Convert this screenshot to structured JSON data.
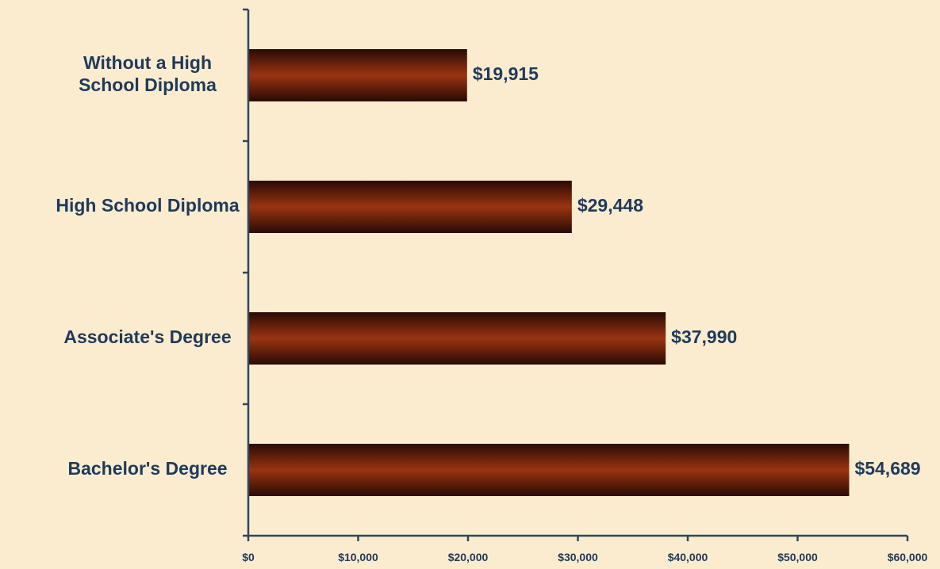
{
  "chart_data": {
    "type": "bar",
    "orientation": "horizontal",
    "title": "",
    "xlabel": "",
    "ylabel": "",
    "categories": [
      "Without a High School Diploma",
      "High School Diploma",
      "Associate's Degree",
      "Bachelor's Degree"
    ],
    "category_label_lines": [
      [
        "Without a High",
        "School Diploma"
      ],
      [
        "High School Diploma"
      ],
      [
        "Associate's Degree"
      ],
      [
        "Bachelor's Degree"
      ]
    ],
    "values": [
      19915,
      29448,
      37990,
      54689
    ],
    "data_labels": [
      "$19,915",
      "$29,448",
      "$37,990",
      "$54,689"
    ],
    "xlim": [
      0,
      60000
    ],
    "xticks": [
      0,
      10000,
      20000,
      30000,
      40000,
      50000,
      60000
    ],
    "xtick_labels": [
      "$0",
      "$10,000",
      "$20,000",
      "$30,000",
      "$40,000",
      "$50,000",
      "$60,000"
    ],
    "grid": false,
    "legend": "none",
    "colors": {
      "bar_mid": "#9a3410",
      "bar_dark": "#2a0a04",
      "label": "#1f3a5a",
      "axis": "#2f4660",
      "background": "#fbecd0"
    }
  }
}
